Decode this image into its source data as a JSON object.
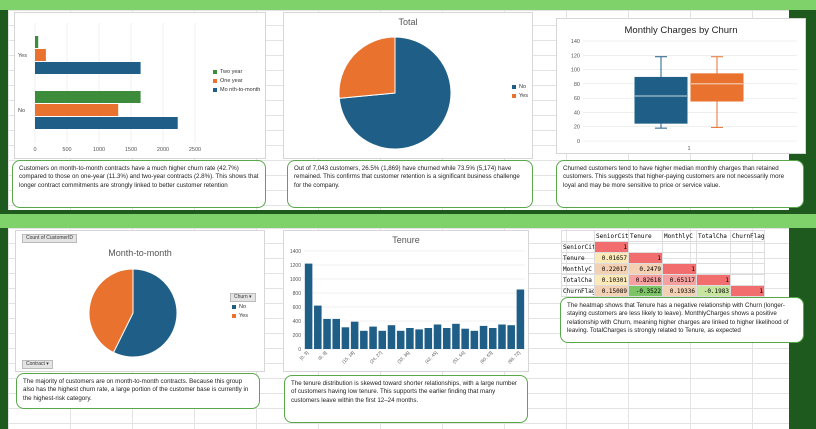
{
  "colors": {
    "blue": "#1f5f87",
    "orange": "#e8722e",
    "green": "#3c8c3c",
    "band": "#7fd16a"
  },
  "bar_chart": {
    "chart_data": {
      "type": "bar",
      "orientation": "horizontal",
      "categories": [
        "No",
        "Yes"
      ],
      "series": [
        {
          "name": "Two year",
          "values": [
            1650,
            50
          ]
        },
        {
          "name": "One year",
          "values": [
            1300,
            170
          ]
        },
        {
          "name": "Month-to-month",
          "values": [
            2230,
            1650
          ]
        }
      ],
      "xlim": [
        0,
        2500
      ],
      "xticks": [
        "0",
        "500",
        "1000",
        "1500",
        "2000",
        "2500"
      ]
    },
    "legend": [
      "Two year",
      "One year",
      "Mo nth-to-month"
    ],
    "note": "Customers on month-to-month contracts have a much higher churn rate (42.7%) compared to those on one-year (11.3%) and two-year contracts (2.8%). This shows that longer contract commitments are strongly linked to better customer retention"
  },
  "total_pie": {
    "title": "Total",
    "chart_data": {
      "type": "pie",
      "labels": [
        "No",
        "Yes"
      ],
      "values": [
        73.5,
        26.5
      ]
    },
    "legend": [
      "No",
      "Yes"
    ],
    "note": "Out of 7,043 customers, 26.5% (1,869) have churned while 73.5% (5,174) have remained. This confirms that customer retention is a significant business challenge for the company."
  },
  "box_chart": {
    "title": "Monthly Charges by Churn",
    "chart_data": {
      "type": "box",
      "categories": [
        "1"
      ],
      "series": [
        {
          "min": 18,
          "q1": 25,
          "median": 63,
          "q3": 89,
          "max": 118
        },
        {
          "min": 19,
          "q1": 56,
          "median": 80,
          "q3": 94,
          "max": 118
        }
      ],
      "ylim": [
        0,
        140
      ],
      "yticks": [
        "0",
        "20",
        "40",
        "60",
        "80",
        "100",
        "120",
        "140"
      ]
    },
    "note": "Churned customers tend to have higher median monthly charges than retained customers. This suggests that higher-paying customers are not necessarily more loyal and may be more sensitive to price or service value."
  },
  "mtm_pie": {
    "title": "Month-to-month",
    "count_label": "Count of CustomerID",
    "churn_filter": "Churn",
    "contract_filter": "Contract",
    "chart_data": {
      "type": "pie",
      "labels": [
        "No",
        "Yes"
      ],
      "values": [
        57.3,
        42.7
      ]
    },
    "legend": [
      "No",
      "Yes"
    ],
    "note": "The majority of customers are on month-to-month contracts. Because this group also has the highest churn rate, a large portion of the customer base is currently in the highest-risk category."
  },
  "tenure_hist": {
    "title": "Tenure",
    "chart_data": {
      "type": "bar",
      "categories": [
        "[0, 3]",
        "(3, 6]",
        "(6, 9]",
        "(9, 12]",
        "(12, 15]",
        "(15, 18]",
        "(18, 21]",
        "(21, 24]",
        "(24, 27]",
        "(27, 30]",
        "(30, 33]",
        "(33, 36]",
        "(36, 39]",
        "(39, 42]",
        "(42, 45]",
        "(45, 48]",
        "(48, 51]",
        "(51, 54]",
        "(54, 57]",
        "(57, 60]",
        "(60, 63]",
        "(63, 66]",
        "(66, 69]",
        "(69, 72]"
      ],
      "values": [
        1220,
        620,
        430,
        430,
        310,
        390,
        260,
        320,
        260,
        340,
        260,
        300,
        280,
        300,
        350,
        300,
        360,
        290,
        260,
        330,
        300,
        350,
        340,
        850
      ],
      "ylim": [
        0,
        1400
      ],
      "yticks": [
        "0",
        "200",
        "400",
        "600",
        "800",
        "1000",
        "1200",
        "1400"
      ]
    },
    "xticklabels": [
      "[0, 3]",
      "(6, 9]",
      "(15, 18]",
      "(24, 27]",
      "(33, 36]",
      "(42, 45]",
      "(51, 54]",
      "(60, 63]",
      "(69, 72]"
    ],
    "note": "The tenure distribution is skewed toward shorter relationships, with a large number of customers having low tenure. This supports the earlier finding that many customers leave within the first 12–24 months."
  },
  "heatmap": {
    "headers": [
      "SeniorCit",
      "Tenure",
      "MonthlyC",
      "TotalCha",
      "ChurnFlag"
    ],
    "rows": [
      {
        "label": "SeniorCit",
        "cells": [
          "1",
          "",
          "",
          "",
          ""
        ]
      },
      {
        "label": "Tenure",
        "cells": [
          "0.01657",
          "1",
          "",
          "",
          ""
        ]
      },
      {
        "label": "MonthlyC",
        "cells": [
          "0.22017",
          "0.2479",
          "1",
          "",
          ""
        ]
      },
      {
        "label": "TotalCha",
        "cells": [
          "0.10301",
          "0.82618",
          "0.65117",
          "1",
          ""
        ]
      },
      {
        "label": "ChurnFlag",
        "cells": [
          "0.15089",
          "-0.3522",
          "0.19336",
          "-0.1983",
          "1"
        ]
      }
    ],
    "note": "The heatmap shows that Tenure has a negative relationship with Churn (longer-staying customers are less likely to leave). MonthlyCharges shows a positive relationship with Churn, meaning higher charges are linked to higher likelihood of leaving. TotalCharges is strongly related to Tenure, as expected"
  }
}
